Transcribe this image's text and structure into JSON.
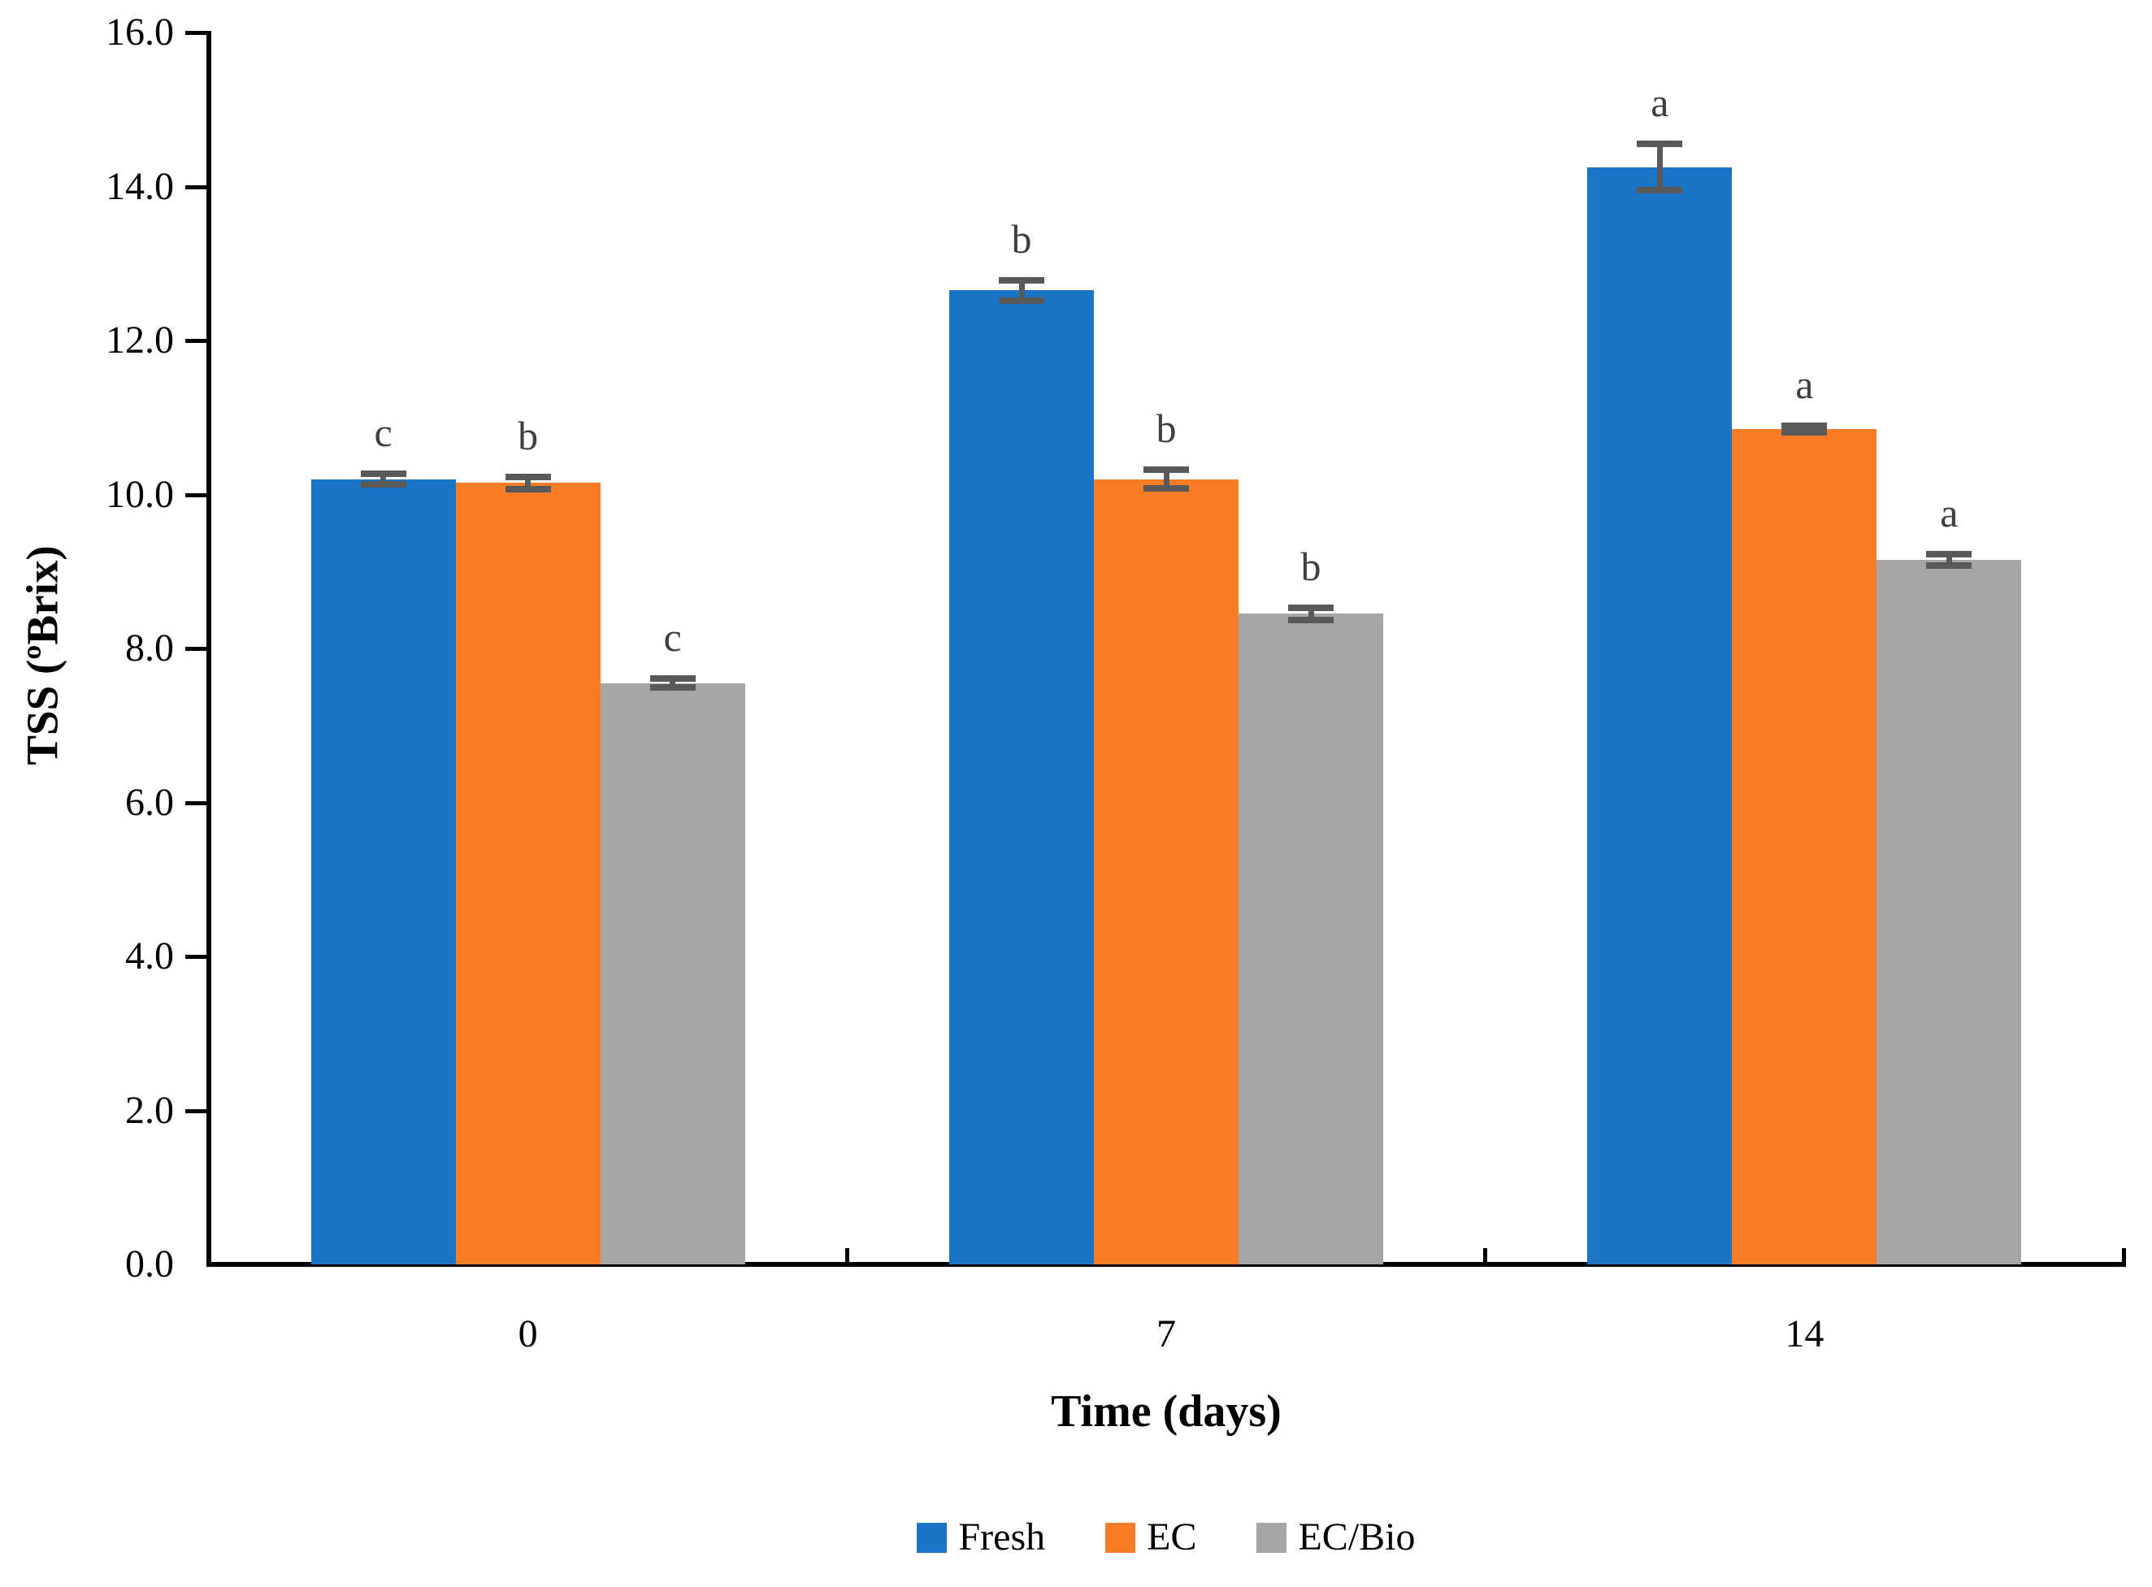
{
  "chart_data": {
    "type": "bar",
    "title": "",
    "xlabel": "Time (days)",
    "ylabel": "TSS (ºBrix)",
    "ylim": [
      0.0,
      16.0
    ],
    "ytick_step": 2.0,
    "ytick_labels": [
      "0.0",
      "2.0",
      "4.0",
      "6.0",
      "8.0",
      "10.0",
      "12.0",
      "14.0",
      "16.0"
    ],
    "categories": [
      "0",
      "7",
      "14"
    ],
    "series": [
      {
        "name": "Fresh",
        "color": "#1b74c5",
        "values": [
          10.2,
          12.65,
          14.25
        ],
        "errors": [
          0.07,
          0.13,
          0.3
        ],
        "letters": [
          "c",
          "b",
          "a"
        ]
      },
      {
        "name": "EC",
        "color": "#f97d26",
        "values": [
          10.15,
          10.2,
          10.85
        ],
        "errors": [
          0.08,
          0.12,
          0.04
        ],
        "letters": [
          "b",
          "b",
          "a"
        ]
      },
      {
        "name": "EC/Bio",
        "color": "#a6a6a6",
        "values": [
          7.55,
          8.45,
          9.15
        ],
        "errors": [
          0.06,
          0.08,
          0.07
        ],
        "letters": [
          "c",
          "b",
          "a"
        ]
      }
    ],
    "error_bar_color": "#595959",
    "letter_color": "#3f3f3f",
    "axis_color": "#000000",
    "legend_position": "bottom",
    "grid": "off"
  }
}
